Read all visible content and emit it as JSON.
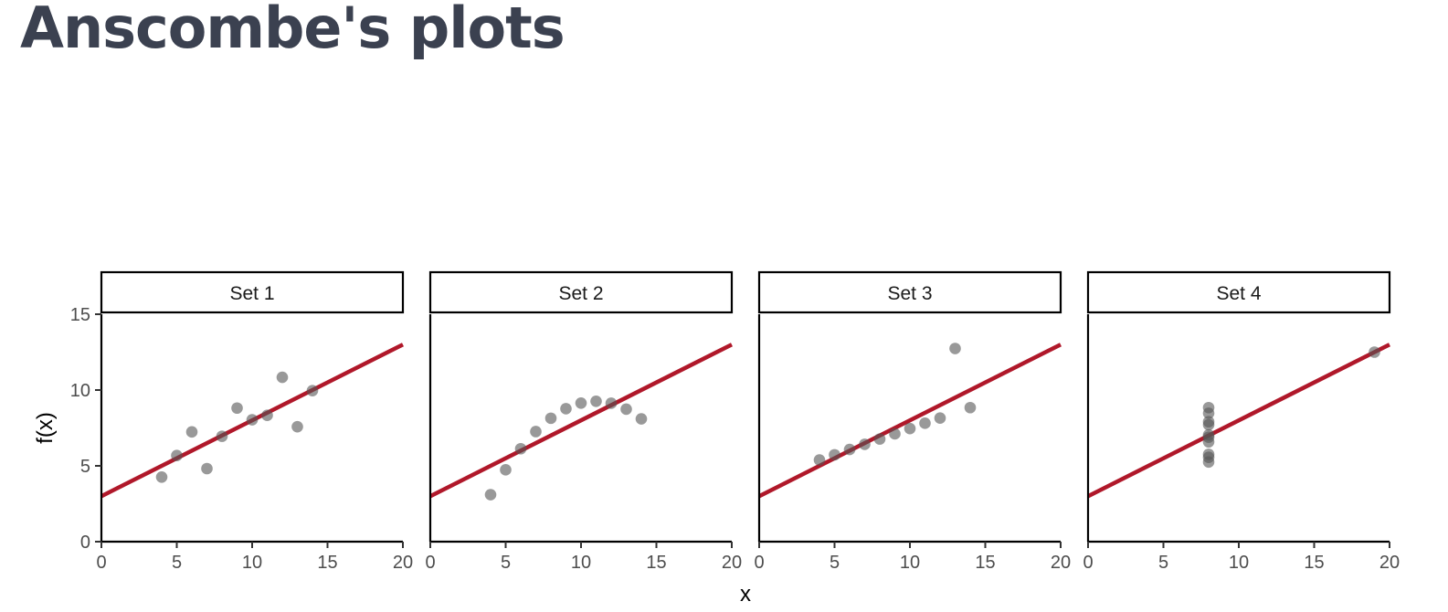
{
  "page": {
    "title": "Anscombe's plots"
  },
  "chart_data": {
    "type": "scatter",
    "title": "",
    "xlabel": "x",
    "ylabel": "f(x)",
    "xlim": [
      0,
      20
    ],
    "ylim": [
      0,
      15
    ],
    "x_ticks": [
      0,
      5,
      10,
      15,
      20
    ],
    "y_ticks": [
      0,
      5,
      10,
      15
    ],
    "grid": false,
    "fit_line": {
      "intercept": 3.0,
      "slope": 0.5,
      "color": "#b0182a"
    },
    "point_color": "#555555",
    "panels": [
      {
        "label": "Set 1",
        "x": [
          10,
          8,
          13,
          9,
          11,
          14,
          6,
          4,
          12,
          7,
          5
        ],
        "y": [
          8.04,
          6.95,
          7.58,
          8.81,
          8.33,
          9.96,
          7.24,
          4.26,
          10.84,
          4.82,
          5.68
        ]
      },
      {
        "label": "Set 2",
        "x": [
          10,
          8,
          13,
          9,
          11,
          14,
          6,
          4,
          12,
          7,
          5
        ],
        "y": [
          9.14,
          8.14,
          8.74,
          8.77,
          9.26,
          8.1,
          6.13,
          3.1,
          9.13,
          7.26,
          4.74
        ]
      },
      {
        "label": "Set 3",
        "x": [
          10,
          8,
          13,
          9,
          11,
          14,
          6,
          4,
          12,
          7,
          5
        ],
        "y": [
          7.46,
          6.77,
          12.74,
          7.11,
          7.81,
          8.84,
          6.08,
          5.39,
          8.15,
          6.42,
          5.73
        ]
      },
      {
        "label": "Set 4",
        "x": [
          8,
          8,
          8,
          8,
          8,
          8,
          8,
          19,
          8,
          8,
          8
        ],
        "y": [
          6.58,
          5.76,
          7.71,
          8.84,
          8.47,
          7.04,
          5.25,
          12.5,
          5.56,
          7.91,
          6.89
        ]
      }
    ]
  }
}
